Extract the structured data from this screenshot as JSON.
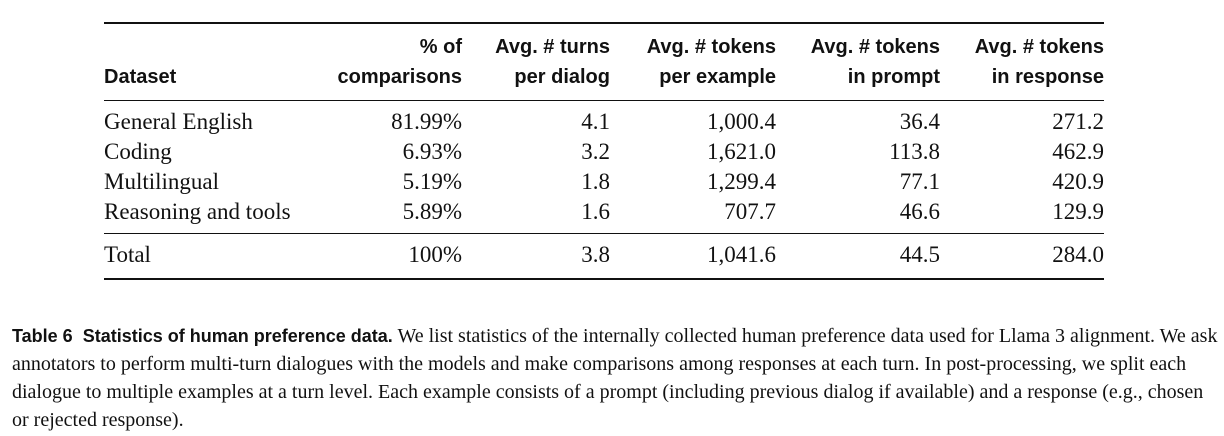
{
  "table": {
    "headers": [
      [
        "",
        "Dataset"
      ],
      [
        "% of",
        "comparisons"
      ],
      [
        "Avg. # turns",
        "per dialog"
      ],
      [
        "Avg. # tokens",
        "per example"
      ],
      [
        "Avg. # tokens",
        "in prompt"
      ],
      [
        "Avg. # tokens",
        "in response"
      ]
    ],
    "rows": [
      [
        "General English",
        "81.99%",
        "4.1",
        "1,000.4",
        "36.4",
        "271.2"
      ],
      [
        "Coding",
        "6.93%",
        "3.2",
        "1,621.0",
        "113.8",
        "462.9"
      ],
      [
        "Multilingual",
        "5.19%",
        "1.8",
        "1,299.4",
        "77.1",
        "420.9"
      ],
      [
        "Reasoning and tools",
        "5.89%",
        "1.6",
        "707.7",
        "46.6",
        "129.9"
      ]
    ],
    "total": [
      "Total",
      "100%",
      "3.8",
      "1,041.6",
      "44.5",
      "284.0"
    ]
  },
  "caption": {
    "label": "Table 6",
    "title": "Statistics of human preference data.",
    "text": "We list statistics of the internally collected human preference data used for Llama 3 alignment. We ask annotators to perform multi-turn dialogues with the models and make comparisons among responses at each turn. In post-processing, we split each dialogue to multiple examples at a turn level. Each example consists of a prompt (including previous dialog if available) and a response (e.g., chosen or rejected response)."
  }
}
